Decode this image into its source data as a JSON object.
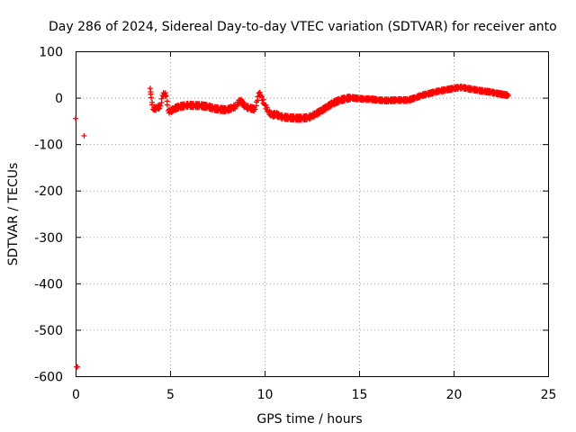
{
  "chart_data": {
    "type": "scatter",
    "title": "Day 286 of 2024, Sidereal Day-to-day VTEC variation (SDTVAR) for receiver anto",
    "xlabel": "GPS time / hours",
    "ylabel": "SDTVAR / TECUs",
    "xlim": [
      0,
      25
    ],
    "ylim": [
      -600,
      100
    ],
    "xticks": [
      "0",
      "5",
      "10",
      "15",
      "20",
      "25"
    ],
    "yticks": [
      "100",
      "0",
      "-100",
      "-200",
      "-300",
      "-400",
      "-500",
      "-600"
    ],
    "grid": true,
    "marker": "+",
    "marker_color": "#ff0000",
    "series": [
      {
        "name": "SDTVAR",
        "x": [
          0.0,
          0.05,
          0.1,
          0.45,
          3.95,
          4.0,
          4.1,
          4.3,
          4.5,
          4.6,
          4.7,
          4.8,
          4.9,
          5.0,
          5.2,
          5.5,
          5.8,
          6.0,
          6.3,
          6.6,
          7.0,
          7.3,
          7.6,
          8.0,
          8.3,
          8.5,
          8.7,
          9.0,
          9.2,
          9.5,
          9.7,
          9.8,
          10.0,
          10.2,
          10.4,
          10.6,
          10.8,
          11.0,
          11.3,
          11.6,
          12.0,
          12.3,
          12.5,
          12.7,
          13.0,
          13.3,
          13.6,
          14.0,
          14.3,
          14.6,
          15.0,
          15.3,
          15.6,
          16.0,
          16.3,
          16.6,
          17.0,
          17.3,
          17.6,
          18.0,
          18.3,
          18.6,
          19.0,
          19.3,
          19.6,
          20.0,
          20.3,
          20.5,
          20.7,
          21.0,
          21.3,
          21.6,
          22.0,
          22.2,
          22.9
        ],
        "y": [
          -45,
          -580,
          -580,
          -82,
          20,
          0,
          -25,
          -22,
          -18,
          5,
          8,
          5,
          -28,
          -30,
          -24,
          -19,
          -17,
          -16,
          -17,
          -17,
          -19,
          -23,
          -25,
          -26,
          -22,
          -18,
          -5,
          -20,
          -22,
          -25,
          10,
          5,
          -15,
          -30,
          -38,
          -35,
          -40,
          -42,
          -43,
          -44,
          -44,
          -43,
          -40,
          -35,
          -28,
          -20,
          -12,
          -5,
          -2,
          0,
          -2,
          -3,
          -3,
          -5,
          -6,
          -6,
          -5,
          -5,
          -5,
          0,
          5,
          8,
          12,
          15,
          17,
          20,
          22,
          22,
          20,
          18,
          16,
          14,
          12,
          10,
          5
        ]
      }
    ]
  }
}
